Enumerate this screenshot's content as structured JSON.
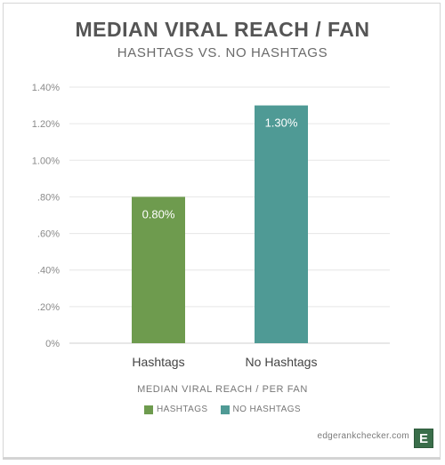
{
  "chart_data": {
    "type": "bar",
    "title": "MEDIAN VIRAL REACH / FAN",
    "subtitle": "HASHTAGS VS. NO HASHTAGS",
    "categories": [
      "Hashtags",
      "No Hashtags"
    ],
    "values": [
      0.8,
      1.3
    ],
    "data_labels": [
      "0.80%",
      "1.30%"
    ],
    "bar_colors": [
      "#6e9b4e",
      "#4f9a95"
    ],
    "ylim": [
      0,
      1.4
    ],
    "yticks": [
      0,
      0.2,
      0.4,
      0.6,
      0.8,
      1.0,
      1.2,
      1.4
    ],
    "ytick_labels": [
      "0%",
      ".20%",
      ".40%",
      ".60%",
      ".80%",
      "1.00%",
      "1.20%",
      "1.40%"
    ],
    "xlabel": "MEDIAN VIRAL REACH / PER FAN",
    "ylabel": "",
    "grid": true,
    "legend_position": "bottom-center",
    "legend": [
      {
        "name": "HASHTAGS",
        "color": "#6e9b4e"
      },
      {
        "name": "NO HASHTAGS",
        "color": "#4f9a95"
      }
    ]
  },
  "footer": {
    "source": "edgerankchecker.com",
    "logo_letter": "E"
  }
}
